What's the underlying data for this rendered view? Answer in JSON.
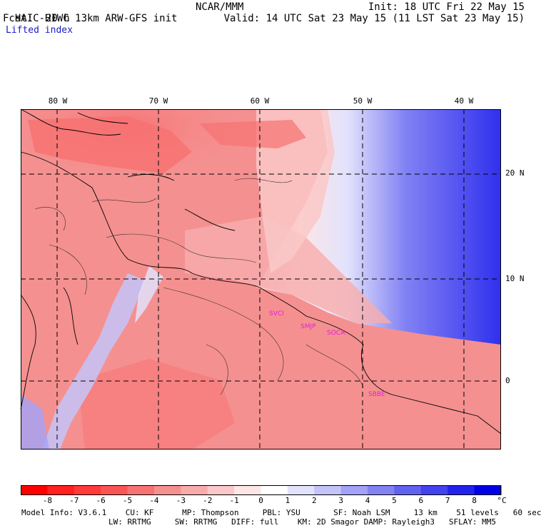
{
  "header": {
    "title": "HAIC-HIWC 13km ARW-GFS init",
    "org": "NCAR/MMM",
    "init": "Init: 18 UTC Fri 22 May 15",
    "fcst_label": "Fcst:",
    "fcst_value": "20 h",
    "valid": "Valid: 14 UTC Sat 23 May 15 (11 LST Sat 23 May 15)",
    "field": "Lifted index"
  },
  "map": {
    "longitude_labels": [
      "80 W",
      "70 W",
      "60 W",
      "50 W",
      "40 W"
    ],
    "latitude_labels": [
      "20 N",
      "10 N",
      "0"
    ],
    "stations": [
      "SVCI",
      "SMJP",
      "SOCA",
      "SBBE"
    ],
    "station_color": "#e020e0",
    "gridline_color": "#000000"
  },
  "colorbar": {
    "unit": "°C",
    "ticks": [
      "-8",
      "-7",
      "-6",
      "-5",
      "-4",
      "-3",
      "-2",
      "-1",
      "0",
      "1",
      "2",
      "3",
      "4",
      "5",
      "6",
      "7",
      "8"
    ],
    "colors": [
      "#ff0000",
      "#ff2020",
      "#ff3a3a",
      "#fa5555",
      "#f77272",
      "#f59090",
      "#f7acac",
      "#fac8c8",
      "#fde6e6",
      "#ffffff",
      "#e2e2fc",
      "#c4c4f9",
      "#a2a2f7",
      "#8282f4",
      "#6262f1",
      "#4242ef",
      "#2222ec",
      "#0000e8"
    ]
  },
  "footer": {
    "line1": "Model Info: V3.6.1    CU: KF      MP: Thompson     PBL: YSU       SF: Noah LSM     13 km    51 levels   60 sec",
    "line2": "LW: RRTMG     SW: RRTMG   DIFF: full    KM: 2D Smagor DAMP: Rayleigh3   SFLAY: MM5"
  }
}
